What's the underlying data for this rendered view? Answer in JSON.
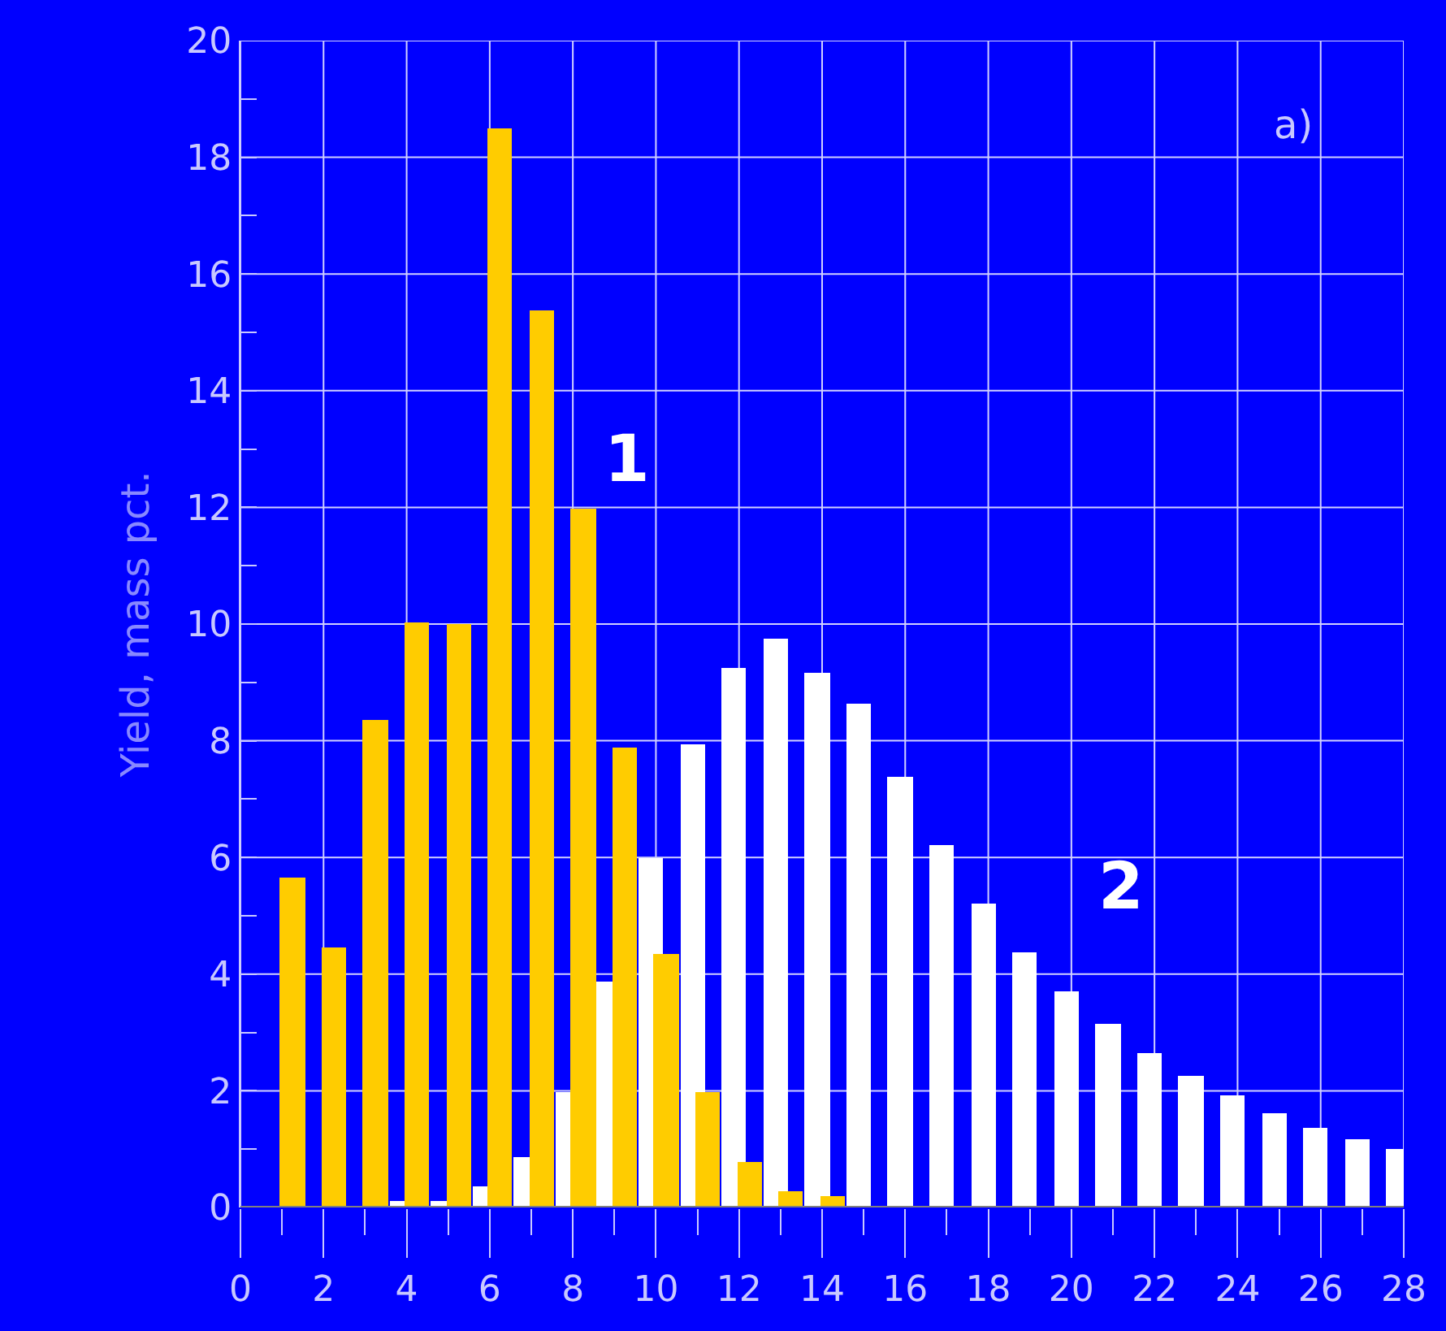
{
  "chart_data": {
    "type": "bar",
    "ylabel": "Yield, mass pct.",
    "annotations": [
      "a)"
    ],
    "x": [
      1,
      2,
      3,
      4,
      5,
      6,
      7,
      8,
      9,
      10,
      11,
      12,
      13,
      14,
      15,
      16,
      17,
      18,
      19,
      20,
      21,
      22,
      23,
      24,
      25,
      26,
      27,
      28
    ],
    "series": [
      {
        "name": "1",
        "color": "#ffcc00",
        "values": [
          5.65,
          4.46,
          8.36,
          10.03,
          10.0,
          18.5,
          15.38,
          11.98,
          7.88,
          4.35,
          1.98,
          0.78,
          0.28,
          0.2,
          null,
          null,
          null,
          null,
          null,
          null,
          null,
          null,
          null,
          null,
          null,
          null,
          null,
          null
        ]
      },
      {
        "name": "2",
        "color": "#ffffff",
        "values": [
          null,
          null,
          null,
          0.1,
          0.1,
          0.36,
          0.86,
          1.98,
          3.87,
          5.99,
          7.95,
          9.25,
          9.75,
          9.16,
          8.64,
          7.38,
          6.21,
          5.21,
          4.37,
          3.7,
          3.15,
          2.65,
          2.26,
          1.92,
          1.62,
          1.37,
          1.17,
          1.0
        ]
      }
    ],
    "xlim": [
      0,
      28
    ],
    "xticks": [
      0,
      {
        "value": 1,
        "label": null
      },
      2,
      {
        "value": 3,
        "label": null
      },
      4,
      {
        "value": 5,
        "label": null
      },
      6,
      {
        "value": 7,
        "label": null
      },
      8,
      {
        "value": 9,
        "label": null
      },
      10,
      {
        "value": 11,
        "label": null
      },
      12,
      {
        "value": 13,
        "label": null
      },
      14,
      {
        "value": 15,
        "label": null
      },
      16,
      {
        "value": 17,
        "label": null
      },
      18,
      {
        "value": 19,
        "label": null
      },
      20,
      {
        "value": 21,
        "label": null
      },
      22,
      {
        "value": 23,
        "label": null
      },
      24,
      {
        "value": 25,
        "label": null
      },
      26,
      {
        "value": 27,
        "label": null
      },
      28
    ],
    "ylim": [
      0,
      20
    ],
    "yticks": [
      0,
      {
        "value": 1,
        "label": null
      },
      2,
      {
        "value": 3,
        "label": null
      },
      4,
      {
        "value": 5,
        "label": null
      },
      6,
      {
        "value": 7,
        "label": null
      },
      8,
      {
        "value": 9,
        "label": null
      },
      10,
      {
        "value": 11,
        "label": null
      },
      12,
      {
        "value": 13,
        "label": null
      },
      14,
      {
        "value": 15,
        "label": null
      },
      16,
      {
        "value": 17,
        "label": null
      },
      18,
      {
        "value": 19,
        "label": null
      },
      20
    ],
    "grid": true,
    "legend": false
  }
}
